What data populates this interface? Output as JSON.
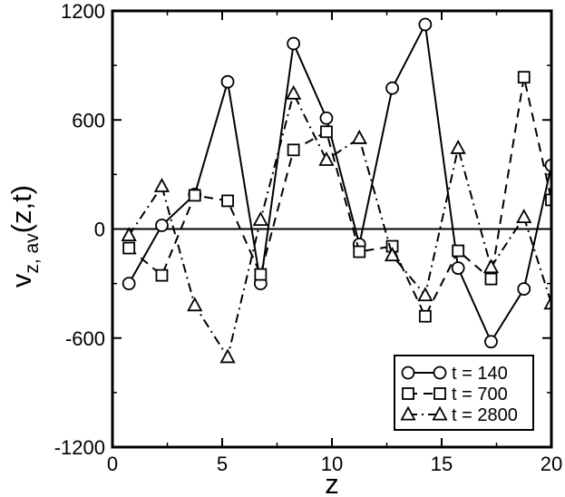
{
  "chart_data": {
    "type": "line",
    "title": "",
    "xlabel": "z",
    "ylabel": {
      "main": "v",
      "subscript": "z, av",
      "suffix": "(z,t)"
    },
    "xlim": [
      0,
      20
    ],
    "ylim": [
      -1200,
      1200
    ],
    "xticks": [
      0,
      5,
      10,
      15,
      20
    ],
    "yticks": [
      -1200,
      -600,
      0,
      600,
      1200
    ],
    "xtick_labels": [
      "0",
      "5",
      "10",
      "15",
      "20"
    ],
    "ytick_labels": [
      "-1200",
      "-600",
      "0",
      "600",
      "1200"
    ],
    "grid": false,
    "zero_line": true,
    "legend_position": "bottom-right",
    "series": [
      {
        "name": "t = 140",
        "marker": "circle",
        "line_style": "solid",
        "color": "#000000",
        "x": [
          0.75,
          2.25,
          3.75,
          5.25,
          6.75,
          8.25,
          9.75,
          11.25,
          12.75,
          14.25,
          15.75,
          17.25,
          18.75,
          20.0
        ],
        "y": [
          -300,
          20,
          190,
          810,
          -300,
          1020,
          610,
          -85,
          775,
          1125,
          -215,
          -620,
          -330,
          350
        ]
      },
      {
        "name": "t = 700",
        "marker": "square",
        "line_style": "dashed",
        "color": "#000000",
        "x": [
          0.75,
          2.25,
          3.75,
          5.25,
          6.75,
          8.25,
          9.75,
          11.25,
          12.75,
          14.25,
          15.75,
          17.25,
          18.75,
          20.0
        ],
        "y": [
          -105,
          -255,
          185,
          155,
          -250,
          435,
          535,
          -125,
          -95,
          -480,
          -120,
          -275,
          835,
          160
        ]
      },
      {
        "name": "t = 2800",
        "marker": "triangle",
        "line_style": "dash-dot",
        "color": "#000000",
        "x": [
          0.75,
          2.25,
          3.75,
          5.25,
          6.75,
          8.25,
          9.75,
          11.25,
          12.75,
          14.25,
          15.75,
          17.25,
          18.75,
          20.0
        ],
        "y": [
          -35,
          235,
          -420,
          -705,
          50,
          745,
          380,
          500,
          -145,
          -365,
          445,
          -210,
          65,
          -410
        ]
      }
    ]
  }
}
